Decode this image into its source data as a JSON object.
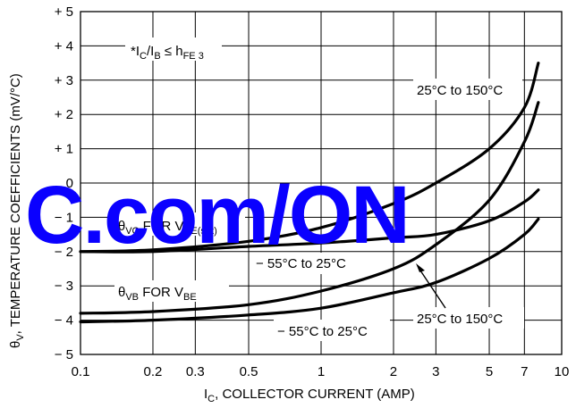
{
  "chart_data": {
    "type": "line",
    "x_scale": "log",
    "xlim": [
      0.1,
      10
    ],
    "ylim": [
      -5,
      5
    ],
    "grid": true,
    "x_ticks": [
      0.1,
      0.2,
      0.3,
      0.5,
      1,
      2,
      3,
      5,
      7,
      10
    ],
    "x_tick_labels": [
      "0.1",
      "0.2",
      "0.3",
      "0.5",
      "1",
      "2",
      "3",
      "5",
      "7",
      "10"
    ],
    "y_ticks": [
      5,
      4,
      3,
      2,
      1,
      0,
      -1,
      -2,
      -3,
      -4,
      -5
    ],
    "y_tick_labels": [
      "+ 5",
      "+ 4",
      "+ 3",
      "+ 2",
      "+ 1",
      "0",
      "− 1",
      "− 2",
      "− 3",
      "− 4",
      "− 5"
    ],
    "xlabel": {
      "main": "I",
      "sub": "C",
      "rest": ", COLLECTOR CURRENT (AMP)"
    },
    "ylabel": {
      "main": "θ",
      "sub": "V",
      "rest": ", TEMPERATURE COEFFICIENTS (mV/°C)"
    },
    "series": [
      {
        "x": [
          0.1,
          0.2,
          0.5,
          1,
          2,
          3,
          5,
          7,
          8
        ],
        "y": [
          -2.0,
          -1.95,
          -1.7,
          -1.3,
          -0.6,
          0.0,
          1.0,
          2.2,
          3.5
        ]
      },
      {
        "x": [
          0.1,
          0.2,
          0.5,
          1,
          2,
          3,
          5,
          7,
          8
        ],
        "y": [
          -2.0,
          -2.0,
          -1.85,
          -1.75,
          -1.6,
          -1.5,
          -1.1,
          -0.55,
          -0.2
        ]
      },
      {
        "x": [
          0.1,
          0.2,
          0.5,
          1,
          2,
          3,
          5,
          7,
          8
        ],
        "y": [
          -3.8,
          -3.75,
          -3.55,
          -3.15,
          -2.5,
          -1.8,
          -0.5,
          1.2,
          2.35
        ]
      },
      {
        "x": [
          0.1,
          0.2,
          0.5,
          1,
          2,
          3,
          5,
          7,
          8
        ],
        "y": [
          -4.05,
          -4.0,
          -3.85,
          -3.65,
          -3.2,
          -2.9,
          -2.2,
          -1.5,
          -1.05
        ]
      }
    ],
    "annotations": {
      "ic_ib": {
        "pre": "*I",
        "s1": "C",
        "mid": "/I",
        "s2": "B",
        "post": " ≤ h",
        "s3": "FE 3"
      },
      "upper_hot": "25°C to 150°C",
      "theta_vc": {
        "pre": "*θ",
        "s1": "VC",
        "mid": " FOR V",
        "s2": "CE(sat)"
      },
      "upper_cold": "− 55°C to 25°C",
      "theta_vb": {
        "pre": "θ",
        "s1": "VB",
        "mid": " FOR V",
        "s2": "BE"
      },
      "lower_hot": "25°C to 150°C",
      "lower_cold": "− 55°C to 25°C"
    },
    "watermark": "C.com/ON",
    "watermark_color": "#0a00ff"
  }
}
